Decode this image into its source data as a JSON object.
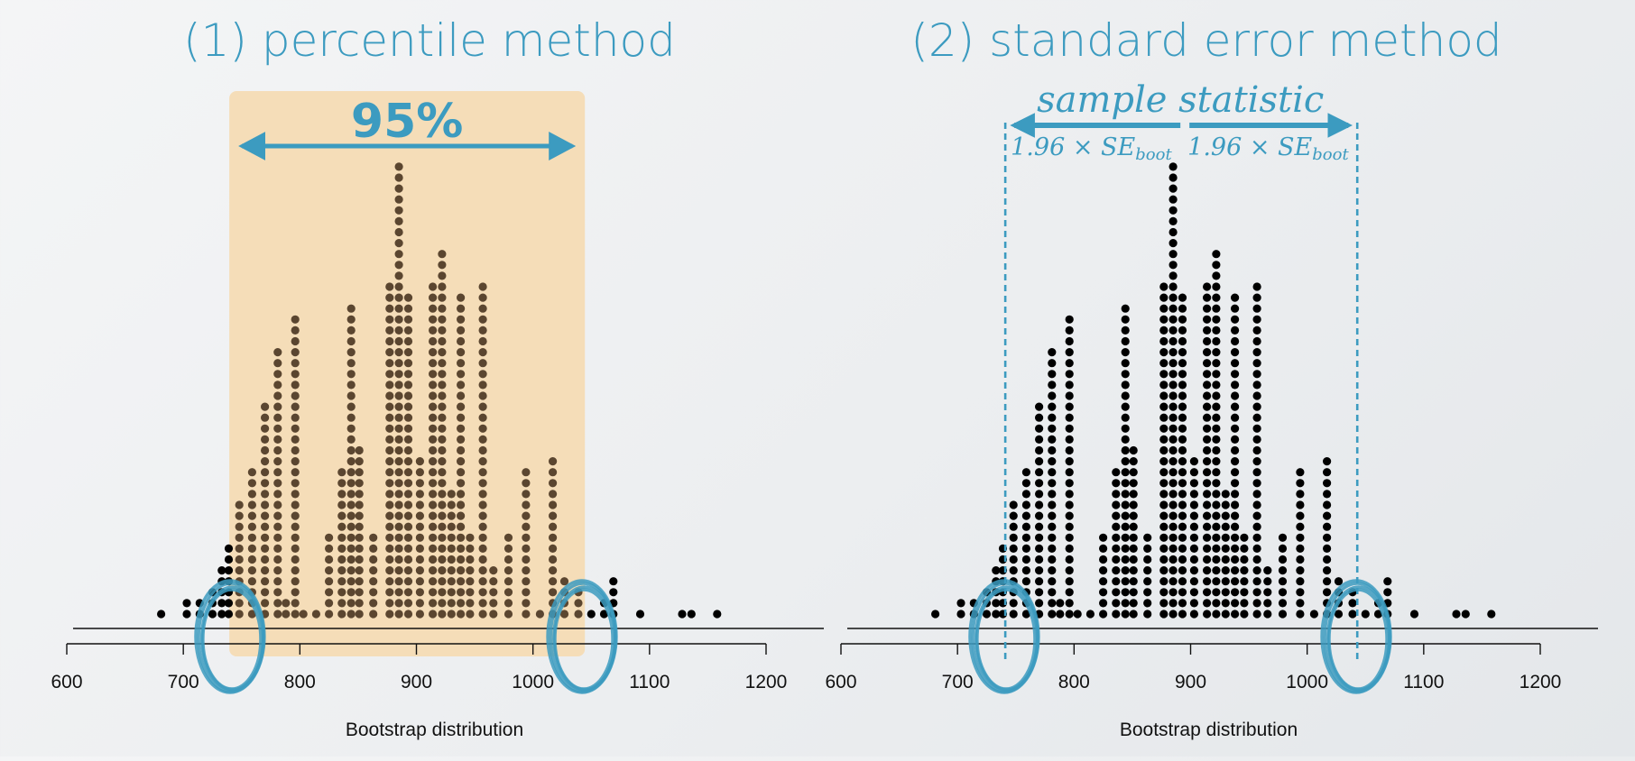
{
  "colors": {
    "accent": "#3c9bc0",
    "band": "#f5ddb8",
    "dot_in_band": "#5b4630",
    "dot": "#000000"
  },
  "chart_data": [
    {
      "type": "scatter",
      "subtype": "dot-plot",
      "title": "(1) percentile method",
      "xlabel": "Bootstrap distribution",
      "ylabel": "",
      "xlim": [
        600,
        1200
      ],
      "xticks": [
        600,
        700,
        800,
        900,
        1000,
        1100,
        1200
      ],
      "grid": false,
      "interval_label": "95%",
      "interval": [
        741,
        1043
      ],
      "circled_bounds": [
        741,
        1043
      ],
      "shaded_band": [
        741,
        1043
      ],
      "stacks": {
        "x": [
          681,
          703,
          714,
          725,
          733,
          739,
          748,
          759,
          770,
          781,
          788,
          796,
          803,
          814,
          825,
          836,
          844,
          851,
          863,
          877,
          885,
          893,
          903,
          914,
          922,
          930,
          938,
          946,
          957,
          966,
          979,
          994,
          1006,
          1017,
          1027,
          1039,
          1050,
          1061,
          1069,
          1092,
          1128,
          1136,
          1158
        ],
        "counts": [
          1,
          2,
          2,
          3,
          5,
          7,
          11,
          14,
          20,
          25,
          2,
          28,
          1,
          1,
          8,
          14,
          29,
          16,
          8,
          31,
          42,
          30,
          15,
          31,
          34,
          12,
          30,
          8,
          31,
          5,
          8,
          14,
          1,
          15,
          4,
          3,
          1,
          2,
          4,
          1,
          1,
          1,
          1
        ]
      }
    },
    {
      "type": "scatter",
      "subtype": "dot-plot",
      "title": "(2) standard error method",
      "xlabel": "Bootstrap distribution",
      "ylabel": "",
      "xlim": [
        600,
        1200
      ],
      "xticks": [
        600,
        700,
        800,
        900,
        1000,
        1100,
        1200
      ],
      "grid": false,
      "interval": [
        741,
        1043
      ],
      "circled_bounds": [
        741,
        1043
      ],
      "interval_label": "sample statistic",
      "left_arm_label": "1.96 × SE",
      "right_arm_label": "1.96 × SE",
      "se_subscript": "boot",
      "stacks": {
        "x": [
          681,
          703,
          714,
          725,
          733,
          739,
          748,
          759,
          770,
          781,
          788,
          796,
          803,
          814,
          825,
          836,
          844,
          851,
          863,
          877,
          885,
          893,
          903,
          914,
          922,
          930,
          938,
          946,
          957,
          966,
          979,
          994,
          1006,
          1017,
          1027,
          1039,
          1050,
          1061,
          1069,
          1092,
          1128,
          1136,
          1158
        ],
        "counts": [
          1,
          2,
          2,
          3,
          5,
          7,
          11,
          14,
          20,
          25,
          2,
          28,
          1,
          1,
          8,
          14,
          29,
          16,
          8,
          31,
          42,
          30,
          15,
          31,
          34,
          12,
          30,
          8,
          31,
          5,
          8,
          14,
          1,
          15,
          4,
          3,
          1,
          2,
          4,
          1,
          1,
          1,
          1
        ]
      }
    }
  ]
}
